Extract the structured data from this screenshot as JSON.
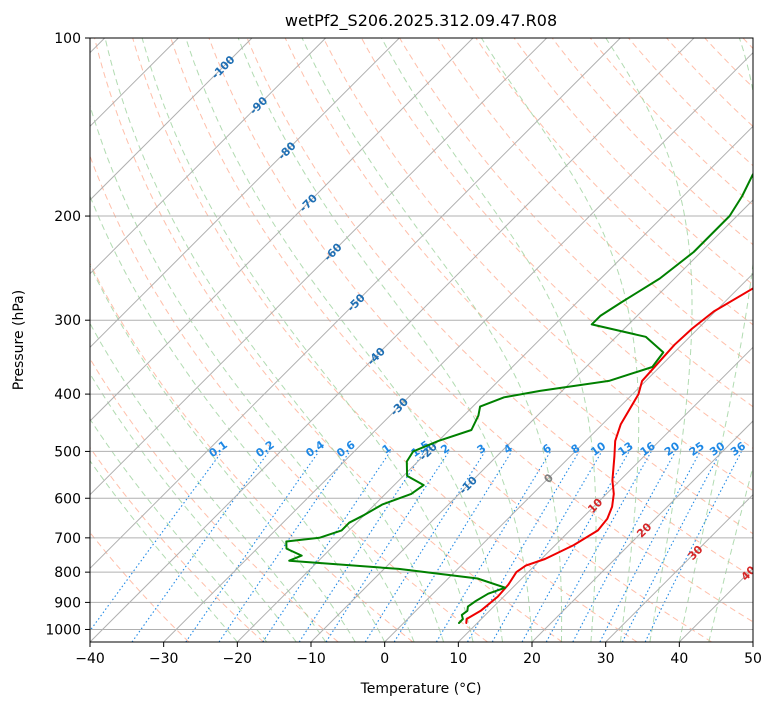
{
  "chart_data": {
    "type": "line",
    "title": "wetPf2_S206.2025.312.09.47.R08",
    "xlabel": "Temperature (°C)",
    "ylabel": "Pressure (hPa)",
    "xlim": [
      -40,
      50
    ],
    "ylim": [
      1050,
      100
    ],
    "y_scale": "log",
    "grid": true,
    "x_ticks": [
      -40,
      -30,
      -20,
      -10,
      0,
      10,
      20,
      30,
      40,
      50
    ],
    "y_ticks": [
      100,
      200,
      300,
      400,
      500,
      600,
      700,
      800,
      900,
      1000
    ],
    "isotherm_labels": [
      -100,
      -90,
      -80,
      -70,
      -60,
      -50,
      -40,
      -30,
      -20,
      -10,
      0,
      10,
      20,
      30,
      40
    ],
    "mixing_ratio_labels": [
      "0.1",
      "0.2",
      "0.4",
      "0.6",
      "1",
      "1.5",
      "2",
      "3",
      "4",
      "6",
      "8",
      "10",
      "13",
      "16",
      "20",
      "25",
      "30",
      "36"
    ],
    "colors": {
      "temperature": "#ee0000",
      "dewpoint": "#008000",
      "isotherm_label_cold": "#1f6fb4",
      "isotherm_label_warm": "#d62728",
      "isotherm_label_zero": "#808080",
      "mixing_ratio": "#1e88e5",
      "dry_adiabat": "#ffb49b",
      "moist_adiabat": "#9ed29e",
      "grid": "#b0b0b0"
    },
    "series": [
      {
        "name": "",
        "role": "temperature",
        "points": [
          [
            8.5,
            975
          ],
          [
            8.0,
            960
          ],
          [
            8.8,
            930
          ],
          [
            9.2,
            880
          ],
          [
            9.0,
            840
          ],
          [
            8.4,
            800
          ],
          [
            8.8,
            780
          ],
          [
            10.5,
            760
          ],
          [
            12.5,
            720
          ],
          [
            13.8,
            680
          ],
          [
            13.5,
            650
          ],
          [
            12.5,
            620
          ],
          [
            11.0,
            590
          ],
          [
            9.0,
            560
          ],
          [
            6.0,
            510
          ],
          [
            4.0,
            480
          ],
          [
            2.5,
            450
          ],
          [
            0.8,
            400
          ],
          [
            -0.5,
            380
          ],
          [
            -0.8,
            350
          ],
          [
            -1.0,
            330
          ],
          [
            -0.8,
            310
          ],
          [
            -0.2,
            290
          ],
          [
            2.0,
            265
          ],
          [
            4.0,
            245
          ],
          [
            5.0,
            220
          ],
          [
            6.5,
            195
          ],
          [
            9.0,
            180
          ],
          [
            11.5,
            170
          ],
          [
            13.5,
            160
          ],
          [
            14.5,
            150
          ],
          [
            14.5,
            140
          ],
          [
            14.8,
            133
          ],
          [
            16.5,
            128
          ],
          [
            19.0,
            122
          ],
          [
            23.0,
            115
          ],
          [
            26.0,
            110
          ],
          [
            26.0,
            105
          ],
          [
            26.5,
            100
          ]
        ]
      },
      {
        "name": "",
        "role": "dewpoint",
        "points": [
          [
            7.5,
            975
          ],
          [
            7.5,
            960
          ],
          [
            6.8,
            945
          ],
          [
            7.0,
            930
          ],
          [
            6.5,
            915
          ],
          [
            6.8,
            895
          ],
          [
            7.5,
            870
          ],
          [
            9.0,
            850
          ],
          [
            4.0,
            820
          ],
          [
            -8.0,
            790
          ],
          [
            -24.0,
            765
          ],
          [
            -23.0,
            750
          ],
          [
            -26.0,
            730
          ],
          [
            -27.0,
            710
          ],
          [
            -23.0,
            700
          ],
          [
            -21.0,
            680
          ],
          [
            -21.0,
            660
          ],
          [
            -20.0,
            640
          ],
          [
            -19.0,
            615
          ],
          [
            -16.5,
            590
          ],
          [
            -16.0,
            570
          ],
          [
            -19.5,
            550
          ],
          [
            -21.5,
            520
          ],
          [
            -22.0,
            500
          ],
          [
            -20.0,
            480
          ],
          [
            -17.0,
            460
          ],
          [
            -18.0,
            435
          ],
          [
            -19.0,
            420
          ],
          [
            -17.0,
            405
          ],
          [
            -13.0,
            395
          ],
          [
            -5.0,
            380
          ],
          [
            -1.0,
            360
          ],
          [
            -1.5,
            340
          ],
          [
            -6.0,
            320
          ],
          [
            -15.0,
            305
          ],
          [
            -15.0,
            295
          ],
          [
            -14.0,
            280
          ],
          [
            -12.0,
            255
          ],
          [
            -11.0,
            230
          ],
          [
            -11.0,
            200
          ],
          [
            -12.0,
            185
          ],
          [
            -13.5,
            170
          ],
          [
            -12.0,
            155
          ],
          [
            -9.5,
            140
          ],
          [
            -6.5,
            125
          ],
          [
            -4.5,
            115
          ],
          [
            -1.0,
            106
          ],
          [
            0.5,
            100
          ]
        ]
      }
    ]
  }
}
